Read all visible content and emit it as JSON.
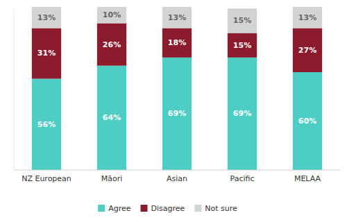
{
  "chart_data": {
    "type": "bar",
    "stacked": true,
    "categories": [
      "NZ European",
      "Māori",
      "Asian",
      "Pacific",
      "MELAA"
    ],
    "series": [
      {
        "name": "Agree",
        "color": "#4ecdc4",
        "values": [
          56,
          64,
          69,
          69,
          60
        ],
        "value_labels": [
          "56%",
          "64%",
          "69%",
          "69%",
          "60%"
        ]
      },
      {
        "name": "Disagree",
        "color": "#8b1a2d",
        "values": [
          31,
          26,
          18,
          15,
          27
        ],
        "value_labels": [
          "31%",
          "26%",
          "18%",
          "15%",
          "27%"
        ]
      },
      {
        "name": "Not sure",
        "color": "#d3d3d3",
        "values": [
          13,
          10,
          13,
          15,
          13
        ],
        "value_labels": [
          "13%",
          "10%",
          "13%",
          "15%",
          "13%"
        ]
      }
    ],
    "ylim": [
      0,
      100
    ],
    "grid": false,
    "legend": "bottom",
    "data_labels": true,
    "tick_labels": "x"
  }
}
